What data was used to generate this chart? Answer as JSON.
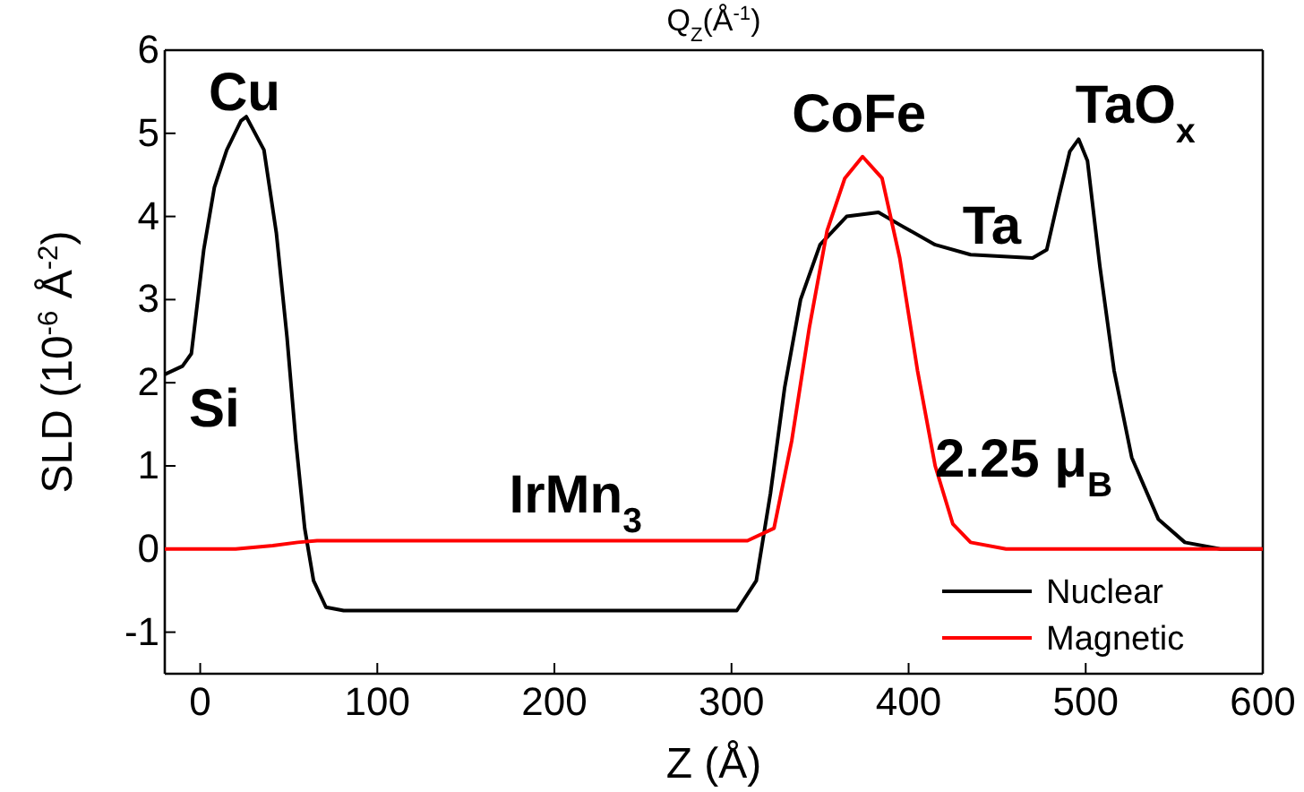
{
  "chart_data": {
    "type": "line",
    "xlabel": "Z (Å)",
    "ylabel": "SLD (10$^{-6}$ Å$^{-2}$)",
    "xlim": [
      -20,
      600
    ],
    "ylim": [
      -1.5,
      6
    ],
    "xticks": [
      0,
      100,
      200,
      300,
      400,
      500,
      600
    ],
    "yticks": [
      -1,
      0,
      1,
      2,
      3,
      4,
      5,
      6
    ],
    "grid": false,
    "legend": "bottom right",
    "line_style": "solid",
    "marker": "none",
    "series": [
      {
        "name": "Nuclear",
        "color": "#000000",
        "x": [
          -20,
          -10,
          -5,
          2,
          8,
          15,
          23,
          26,
          36,
          43,
          49,
          54,
          59,
          64,
          71,
          81,
          150,
          250,
          303,
          314,
          322,
          330,
          339,
          350,
          365,
          383,
          395,
          415,
          435,
          470,
          478,
          485,
          491,
          496,
          501,
          508,
          516,
          526,
          541,
          556,
          576,
          600
        ],
        "values": [
          2.1,
          2.2,
          2.35,
          3.6,
          4.35,
          4.8,
          5.15,
          5.2,
          4.8,
          3.8,
          2.55,
          1.3,
          0.25,
          -0.38,
          -0.7,
          -0.74,
          -0.74,
          -0.74,
          -0.74,
          -0.38,
          0.67,
          1.94,
          3.0,
          3.66,
          4.0,
          4.05,
          3.9,
          3.66,
          3.54,
          3.5,
          3.6,
          4.25,
          4.78,
          4.93,
          4.67,
          3.4,
          2.15,
          1.1,
          0.36,
          0.08,
          0,
          0
        ]
      },
      {
        "name": "Magnetic",
        "color": "#ff0000",
        "x": [
          -20,
          20,
          41,
          55,
          66,
          150,
          250,
          309,
          324,
          334,
          344,
          354,
          364,
          374,
          385,
          395,
          405,
          415,
          425,
          435,
          455,
          600
        ],
        "values": [
          0,
          0,
          0.04,
          0.08,
          0.1,
          0.1,
          0.1,
          0.1,
          0.25,
          1.3,
          2.67,
          3.83,
          4.46,
          4.72,
          4.46,
          3.5,
          2.15,
          1.0,
          0.3,
          0.08,
          0,
          0
        ]
      }
    ],
    "annotations": [
      "Q$_{Z}$(Å$^{-1}$)",
      "Cu",
      "Si",
      "CoFe",
      "Ta",
      "TaO$_{x}$",
      "IrMn$_{3}$",
      "2.25 μ$_{B}$"
    ]
  }
}
